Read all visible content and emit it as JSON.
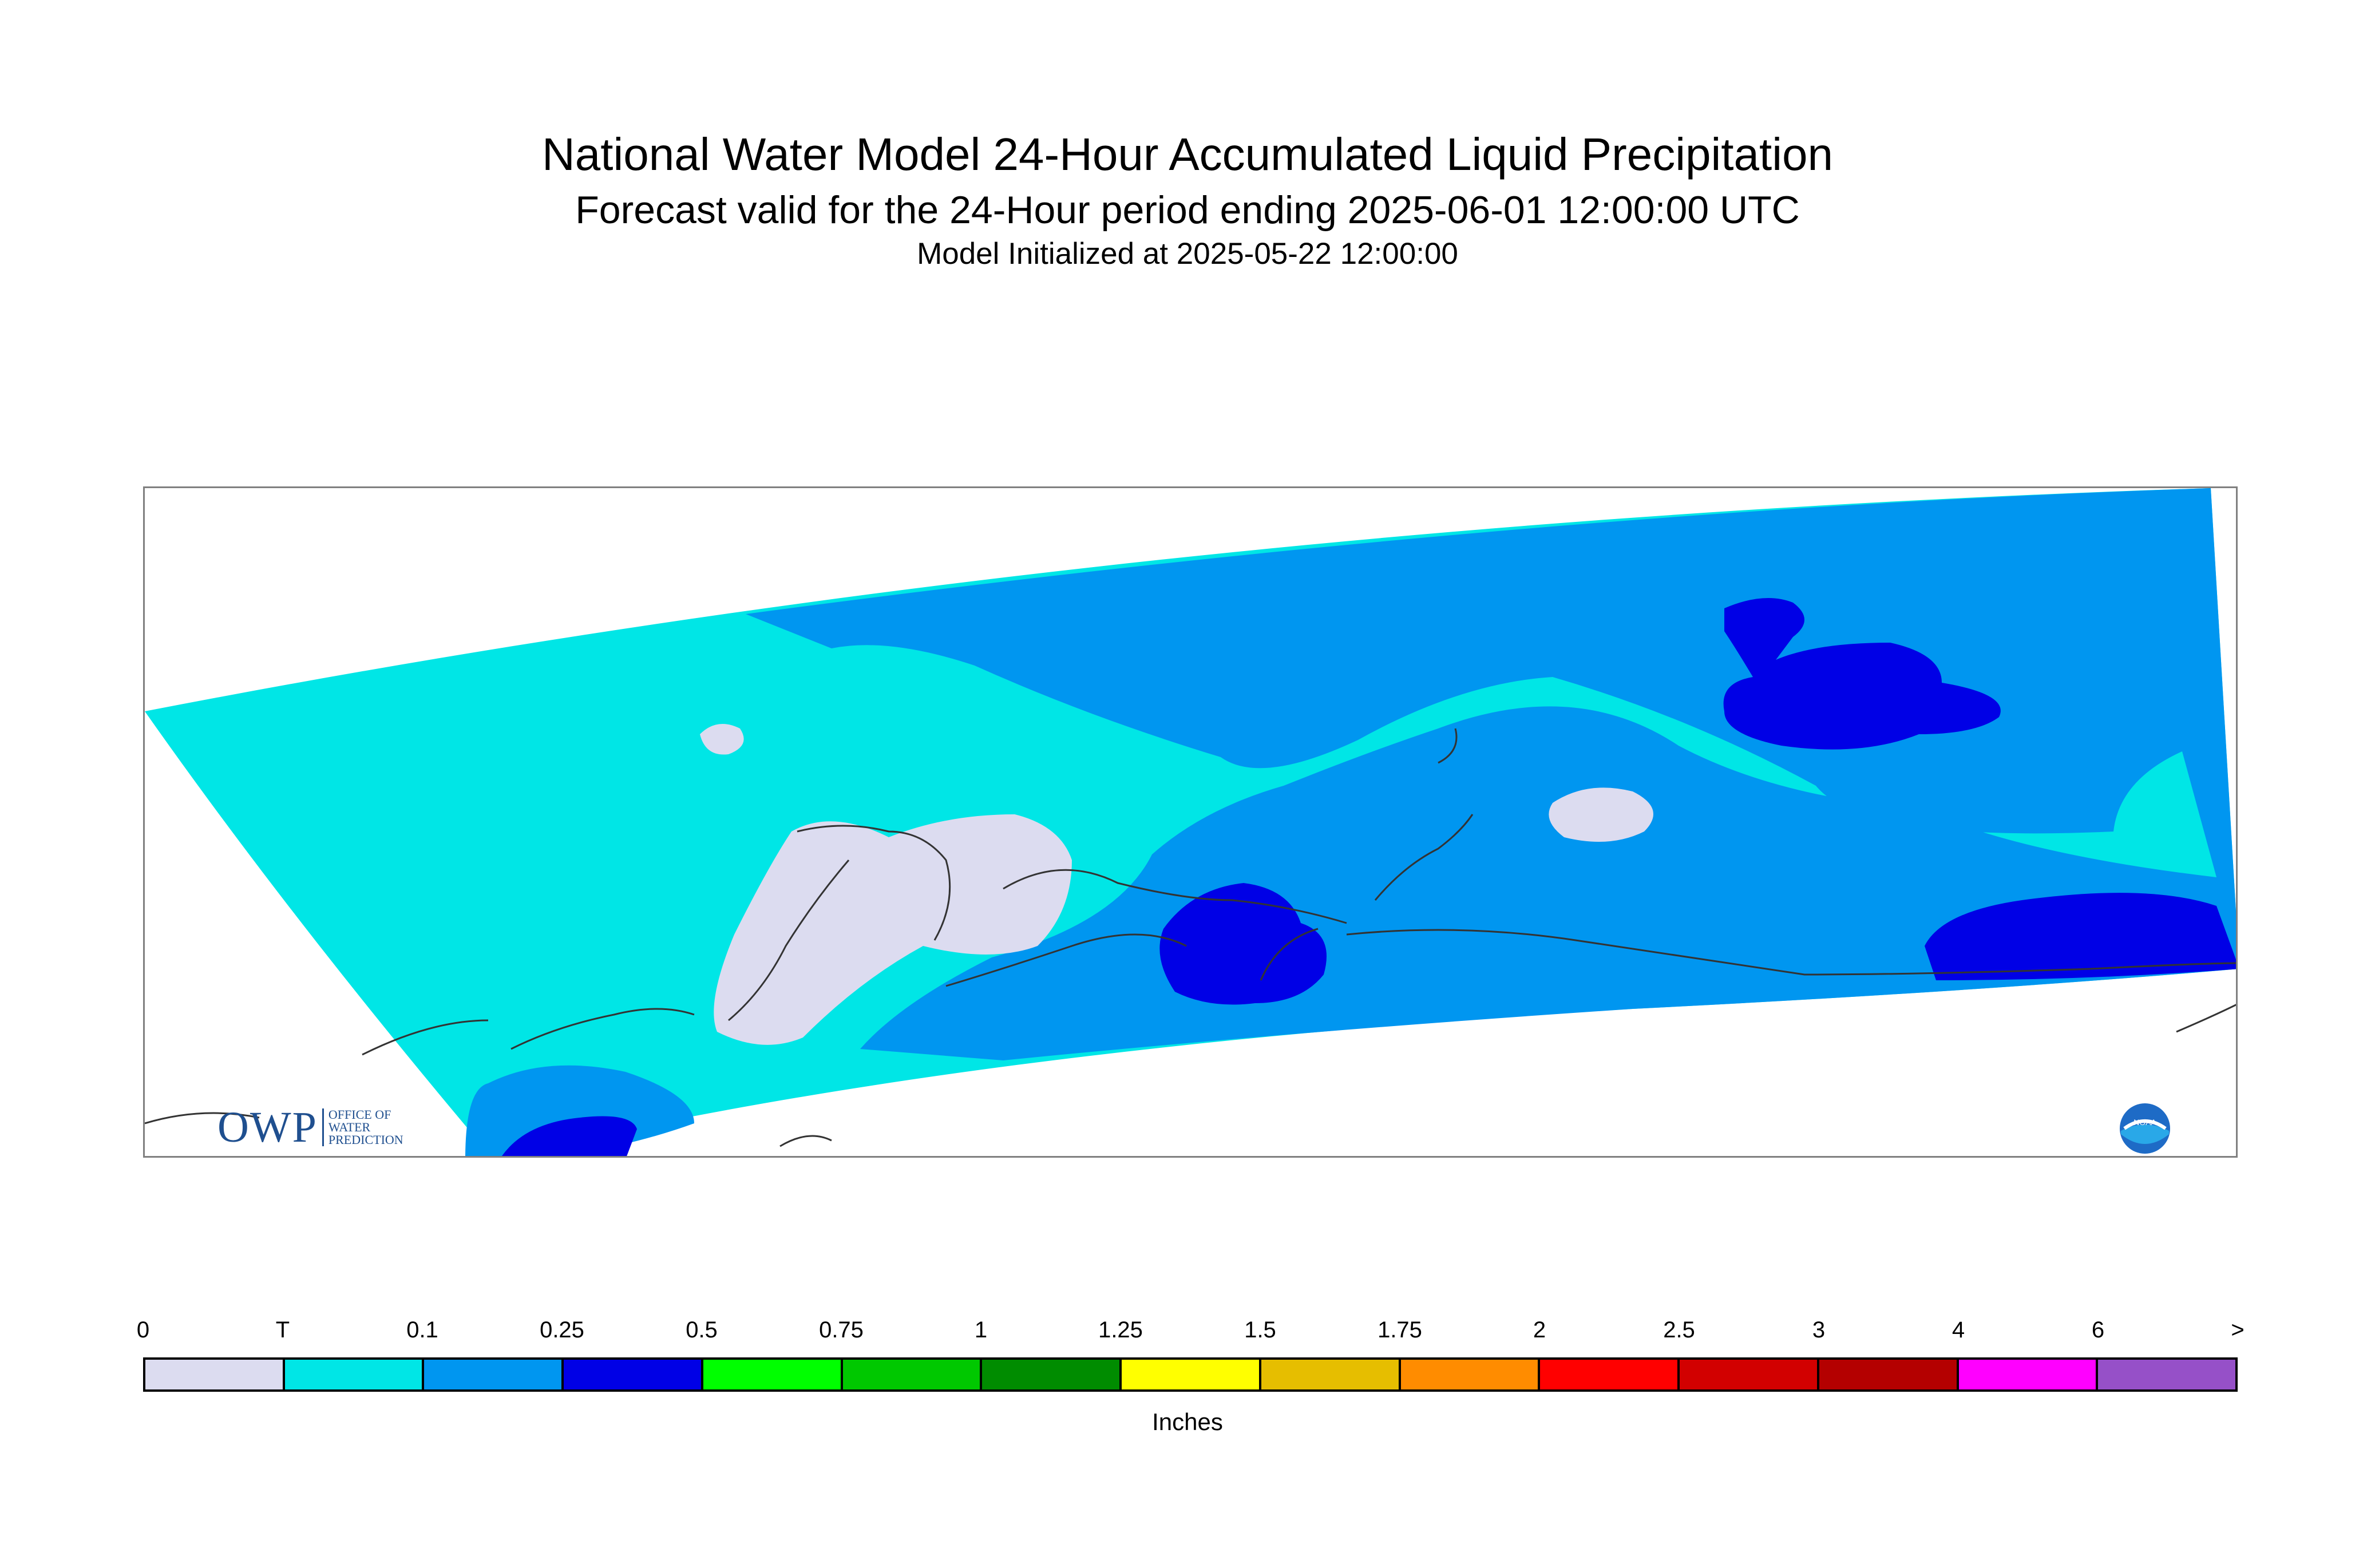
{
  "header": {
    "title": "National Water Model 24-Hour Accumulated Liquid Precipitation",
    "subtitle": "Forecast valid for the 24-Hour period ending 2025-06-01 12:00:00 UTC",
    "init": "Model Initialized at 2025-05-22 12:00:00"
  },
  "legend": {
    "labels": [
      "0",
      "T",
      "0.1",
      "0.25",
      "0.5",
      "0.75",
      "1",
      "1.25",
      "1.5",
      "1.75",
      "2",
      "2.5",
      "3",
      "4",
      "6",
      ">"
    ],
    "colors": [
      "#dcdcf0",
      "#00e6e6",
      "#0096f0",
      "#0000e6",
      "#00ff00",
      "#00c800",
      "#008c00",
      "#ffff00",
      "#e6be00",
      "#ff8c00",
      "#ff0000",
      "#d20000",
      "#b40000",
      "#ff00ff",
      "#9650c8"
    ],
    "units": "Inches"
  },
  "logos": {
    "owp_mark": "OWP",
    "owp_line1": "OFFICE OF",
    "owp_line2": "WATER",
    "owp_line3": "PREDICTION",
    "noaa_text": "NOAA"
  }
}
